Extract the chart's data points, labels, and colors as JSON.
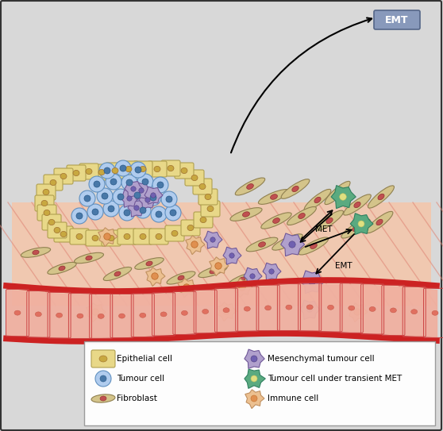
{
  "bg_color": "#d8d8d8",
  "border_color": "#333333",
  "legend_items_left": [
    {
      "label": "Epithelial cell",
      "color": "#e8d888",
      "shape": "rect"
    },
    {
      "label": "Tumour cell",
      "color": "#b0ccee",
      "shape": "circle"
    },
    {
      "label": "Fibroblast",
      "color": "#d0c080",
      "shape": "spindle"
    }
  ],
  "legend_items_right": [
    {
      "label": "Mesenchymal tumour cell",
      "color": "#b0a0cc",
      "shape": "blob"
    },
    {
      "label": "Tumour cell under transient MET",
      "color": "#5aaa80",
      "shape": "blob"
    },
    {
      "label": "Immune cell",
      "color": "#ecc090",
      "shape": "blob"
    }
  ],
  "emt_box_color": "#8899bb",
  "emt_box_ec": "#556688",
  "emt_text": "EMT",
  "met_text": "MET",
  "arrow_color": "#111111",
  "epithelial_color": "#e8d888",
  "epithelial_ec": "#b0a050",
  "epithelial_nuc": "#c8a840",
  "tumour_color": "#b0ccee",
  "tumour_ec": "#6090c0",
  "tumour_nuc": "#4878a8",
  "mesen_color": "#b0a0cc",
  "mesen_ec": "#705898",
  "mesen_nuc": "#7060b0",
  "immune_color": "#ecc090",
  "immune_ec": "#c09060",
  "immune_nuc": "#e09050",
  "tmet_color": "#5aaa80",
  "tmet_ec": "#308060",
  "tmet_nuc": "#e0e080",
  "fibro_color": "#d4c48a",
  "fibro_ec": "#908050",
  "fibro_nuc": "#c05050",
  "vessel_fill": "#f0b0a0",
  "vessel_border": "#cc2222",
  "vessel_cell_ec": "#cc4444",
  "vessel_nuc": "#e07060",
  "stroma_color": "#f0c8b0",
  "stroma_fiber": "#e08878"
}
